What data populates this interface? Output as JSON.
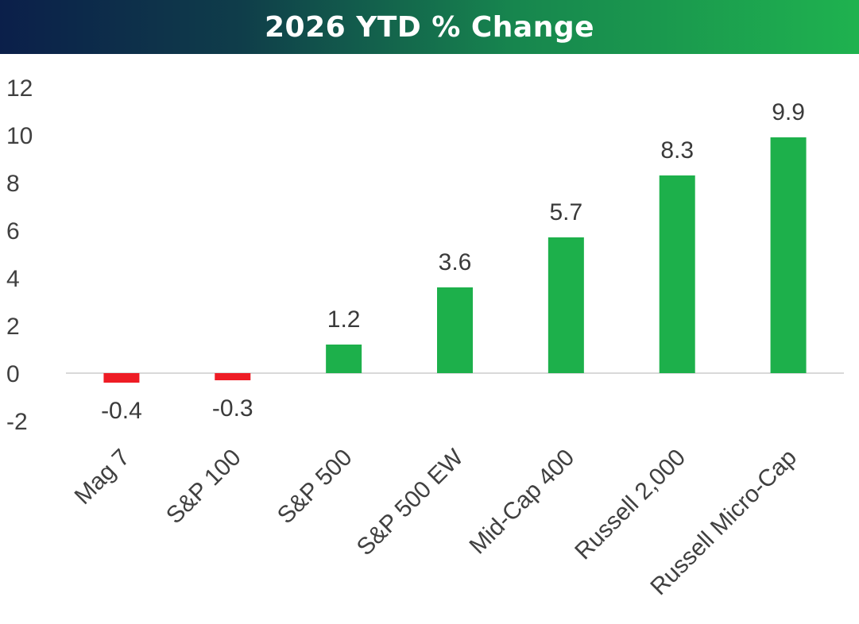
{
  "chart_data": {
    "type": "bar",
    "title": "2026 YTD % Change",
    "categories": [
      "Mag 7",
      "S&P 100",
      "S&P 500",
      "S&P 500 EW",
      "Mid-Cap 400",
      "Russell 2,000",
      "Russell Micro-Cap"
    ],
    "values": [
      -0.4,
      -0.3,
      1.2,
      3.6,
      5.7,
      8.3,
      9.9
    ],
    "data_labels": [
      "-0.4",
      "-0.3",
      "1.2",
      "3.6",
      "5.7",
      "8.3",
      "9.9"
    ],
    "ylim": [
      -2,
      12
    ],
    "yticks": [
      -2,
      0,
      2,
      4,
      6,
      8,
      10,
      12
    ],
    "xlabel": "",
    "ylabel": "",
    "grid": false,
    "colors": {
      "positive": "#1db04b",
      "negative": "#ee1c25",
      "zero_line": "#d9d9d9"
    }
  }
}
